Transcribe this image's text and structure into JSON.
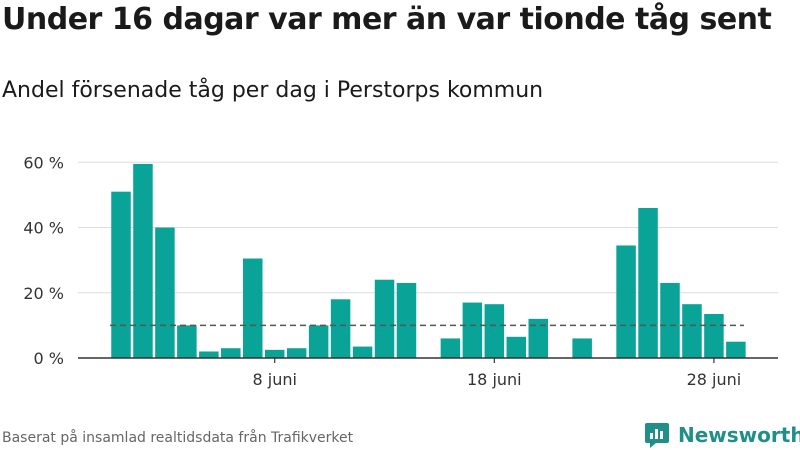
{
  "header": {
    "title": "Under 16 dagar var mer än var tionde tåg sent",
    "subtitle": "Andel försenade tåg per dag i Perstorps kommun"
  },
  "footer": {
    "source": "Baserat på insamlad realtidsdata från Trafikverket",
    "brand": "Newsworthy"
  },
  "colors": {
    "bar": "#0aa398",
    "reference_line": "#555555",
    "grid": "#dddddd",
    "axis": "#333333",
    "brand": "#1f8f87"
  },
  "icons": {
    "brand_logo": "newsworthy-logo-icon"
  },
  "chart_data": {
    "type": "bar",
    "title": "Andel försenade tåg per dag i Perstorps kommun",
    "xlabel": "",
    "ylabel": "",
    "unit": "%",
    "ylim": [
      0,
      65
    ],
    "yticks": [
      0,
      20,
      40,
      60
    ],
    "ytick_labels": [
      "0 %",
      "20 %",
      "40 %",
      "60 %"
    ],
    "xticks": [
      8,
      18,
      28
    ],
    "xtick_labels": [
      "8 juni",
      "18 juni",
      "28 juni"
    ],
    "grid": true,
    "legend": "none",
    "reference_value": 10,
    "days": [
      1,
      2,
      3,
      4,
      5,
      6,
      7,
      8,
      9,
      10,
      11,
      12,
      13,
      14,
      15,
      16,
      17,
      18,
      19,
      20,
      21,
      22,
      23,
      24,
      25,
      26,
      27,
      28,
      29,
      30
    ],
    "values": [
      51,
      59.5,
      40,
      10,
      2,
      3,
      30.5,
      2.5,
      3,
      10,
      18,
      3.5,
      24,
      23,
      null,
      6,
      17,
      16.5,
      6.5,
      12,
      null,
      6,
      null,
      34.5,
      46,
      23,
      16.5,
      13.5,
      5,
      null
    ]
  }
}
